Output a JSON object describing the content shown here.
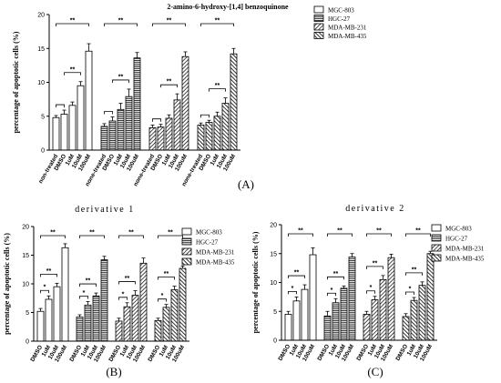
{
  "figure_labels": {
    "a": "(A)",
    "b": "(B)",
    "c": "(C)"
  },
  "chart_data": [
    {
      "id": "A",
      "type": "bar",
      "title": "2-amino-6-hydroxy-[1,4] benzoquinone",
      "ylabel": "percentage of apoptotic cells (%)",
      "ylim": [
        0,
        20
      ],
      "yticks": [
        0,
        5,
        10,
        15,
        20
      ],
      "groups": [
        {
          "name": "MGC-803",
          "categories": [
            "non-treated",
            "DMSO",
            "1uM",
            "10uM",
            "100uM"
          ],
          "values": [
            4.8,
            5.3,
            6.6,
            9.5,
            14.6
          ],
          "errors": [
            0.3,
            0.6,
            0.5,
            0.6,
            1.1
          ]
        },
        {
          "name": "HGC-27",
          "categories": [
            "none-treated",
            "DMSO",
            "1uM",
            "10uM",
            "100uM"
          ],
          "values": [
            3.5,
            4.3,
            6.0,
            7.9,
            13.6
          ],
          "errors": [
            0.4,
            0.6,
            0.9,
            1.1,
            0.8
          ]
        },
        {
          "name": "MDA-MB-231",
          "categories": [
            "none-treated",
            "DMSO",
            "1uM",
            "10uM",
            "100uM"
          ],
          "values": [
            3.3,
            3.4,
            4.7,
            7.4,
            13.8
          ],
          "errors": [
            0.4,
            0.4,
            0.5,
            0.9,
            0.7
          ]
        },
        {
          "name": "MDA-MB-435",
          "categories": [
            "none-treated",
            "DMSO",
            "1uM",
            "10uM",
            "100uM"
          ],
          "values": [
            3.7,
            4.1,
            5.0,
            6.9,
            14.2
          ],
          "errors": [
            0.3,
            0.3,
            0.6,
            0.8,
            0.8
          ]
        }
      ],
      "legend": [
        "MGC-803",
        "HGC-27",
        "MDA-MB-231",
        "MDA-MB-435"
      ],
      "sig_low": "*",
      "sig_high": "**"
    },
    {
      "id": "B",
      "type": "bar",
      "title": "derivative 1",
      "ylabel": "percentage of apoptotic cells (%)",
      "ylim": [
        0,
        20
      ],
      "yticks": [
        0,
        5,
        10,
        15,
        20
      ],
      "groups": [
        {
          "name": "MGC-803",
          "categories": [
            "DMSO",
            "1uM",
            "10uM",
            "100uM"
          ],
          "values": [
            5.2,
            7.3,
            9.5,
            16.3
          ],
          "errors": [
            0.5,
            0.6,
            0.6,
            0.7
          ]
        },
        {
          "name": "HGC-27",
          "categories": [
            "DMSO",
            "1uM",
            "10uM",
            "100uM"
          ],
          "values": [
            4.2,
            6.3,
            7.9,
            14.2
          ],
          "errors": [
            0.4,
            0.6,
            0.5,
            0.6
          ]
        },
        {
          "name": "MDA-MB-231",
          "categories": [
            "DMSO",
            "1uM",
            "10uM",
            "100uM"
          ],
          "values": [
            3.5,
            6.0,
            8.0,
            13.6
          ],
          "errors": [
            0.5,
            0.7,
            0.8,
            0.9
          ]
        },
        {
          "name": "MDA-MB-435",
          "categories": [
            "DMSO",
            "1uM",
            "10uM",
            "100uM"
          ],
          "values": [
            3.6,
            5.9,
            9.0,
            12.7
          ],
          "errors": [
            0.4,
            0.5,
            0.6,
            0.4
          ]
        }
      ],
      "legend": [
        "MGC-803",
        "HGC-27",
        "MDA-MB-231",
        "MDA-MB-435"
      ],
      "sig_low": "*",
      "sig_high": "**"
    },
    {
      "id": "C",
      "type": "bar",
      "title": "derivative 2",
      "ylabel": "percentage of apoptotic cells (%)",
      "ylim": [
        0,
        20
      ],
      "yticks": [
        0,
        5,
        10,
        15,
        20
      ],
      "groups": [
        {
          "name": "MGC-803",
          "categories": [
            "DMSO",
            "1uM",
            "10uM",
            "100uM"
          ],
          "values": [
            4.5,
            6.8,
            8.8,
            14.8
          ],
          "errors": [
            0.5,
            0.7,
            0.8,
            1.2
          ]
        },
        {
          "name": "HGC-27",
          "categories": [
            "DMSO",
            "1uM",
            "10uM",
            "100uM"
          ],
          "values": [
            4.2,
            6.5,
            9.0,
            14.4
          ],
          "errors": [
            0.8,
            0.7,
            0.4,
            0.6
          ]
        },
        {
          "name": "MDA-MB-231",
          "categories": [
            "DMSO",
            "1uM",
            "10uM",
            "100uM"
          ],
          "values": [
            4.5,
            7.0,
            10.5,
            14.3
          ],
          "errors": [
            0.5,
            0.6,
            0.7,
            0.6
          ]
        },
        {
          "name": "MDA-MB-435",
          "categories": [
            "DMSO",
            "1uM",
            "10uM",
            "100uM"
          ],
          "values": [
            4.1,
            6.9,
            9.5,
            15.0
          ],
          "errors": [
            0.5,
            0.5,
            0.6,
            0.4
          ]
        }
      ],
      "legend": [
        "MGC-803",
        "HGC-27",
        "MDA-MB-231",
        "MDA-MB-435"
      ],
      "sig_low": "*",
      "sig_high": "**"
    }
  ]
}
